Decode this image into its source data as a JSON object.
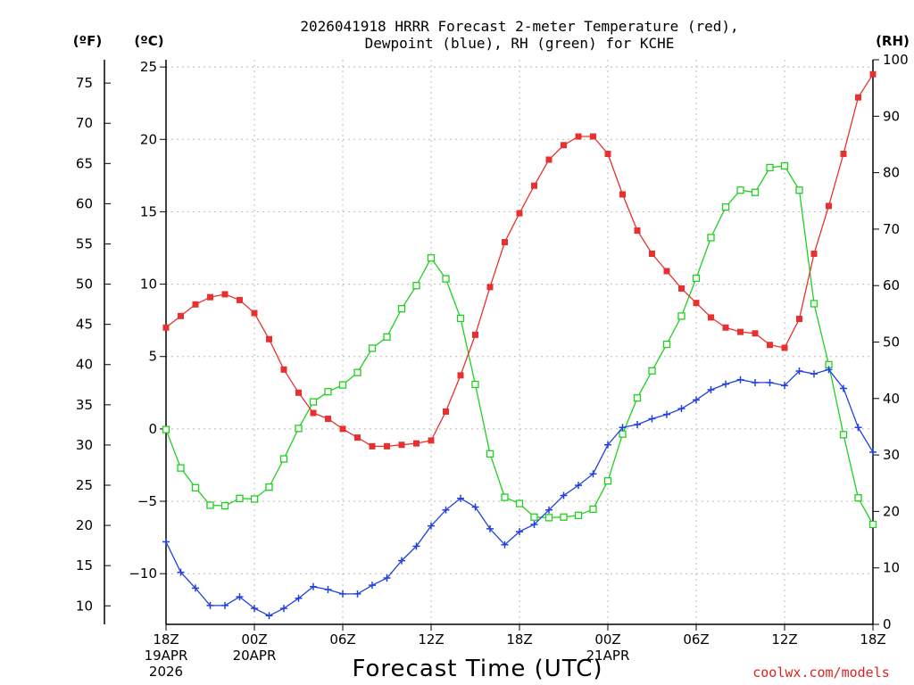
{
  "chart_data": {
    "type": "line",
    "title": [
      "2026041918 HRRR Forecast 2-meter Temperature (red),",
      "Dewpoint (blue), RH (green) for KCHE"
    ],
    "xlabel": "Forecast Time (UTC)",
    "credit": "coolwx.com/models",
    "units": {
      "fahrenheit": "(ºF)",
      "celsius": "(ºC)",
      "rh": "(RH)"
    },
    "x_range": [
      0,
      48
    ],
    "celsius_axis": {
      "range": [
        -13.5,
        25.5
      ],
      "ticks": [
        25,
        20,
        15,
        10,
        5,
        0,
        -5,
        -10
      ],
      "tick_labels": [
        "25",
        "20",
        "15",
        "10",
        "5",
        "0",
        "−5",
        "−10"
      ]
    },
    "fahrenheit_axis": {
      "ticks": [
        75,
        70,
        65,
        60,
        55,
        50,
        45,
        40,
        35,
        30,
        25,
        20,
        15,
        10
      ],
      "tick_labels": [
        "75",
        "70",
        "65",
        "60",
        "55",
        "50",
        "45",
        "40",
        "35",
        "30",
        "25",
        "20",
        "15",
        "10"
      ]
    },
    "rh_axis": {
      "range": [
        0,
        100
      ],
      "ticks": [
        100,
        90,
        80,
        70,
        60,
        50,
        40,
        30,
        20,
        10,
        0
      ],
      "tick_labels": [
        "100",
        "90",
        "80",
        "70",
        "60",
        "50",
        "40",
        "30",
        "20",
        "10",
        "0"
      ]
    },
    "x_ticks": [
      {
        "hour": 0,
        "lines": [
          "18Z",
          "19APR",
          "2026"
        ]
      },
      {
        "hour": 6,
        "lines": [
          "00Z",
          "20APR"
        ]
      },
      {
        "hour": 12,
        "lines": [
          "06Z"
        ]
      },
      {
        "hour": 18,
        "lines": [
          "12Z"
        ]
      },
      {
        "hour": 24,
        "lines": [
          "18Z"
        ]
      },
      {
        "hour": 30,
        "lines": [
          "00Z",
          "21APR"
        ]
      },
      {
        "hour": 36,
        "lines": [
          "06Z"
        ]
      },
      {
        "hour": 42,
        "lines": [
          "12Z"
        ]
      },
      {
        "hour": 48,
        "lines": [
          "18Z"
        ]
      }
    ],
    "series": [
      {
        "name": "2-meter Temperature",
        "axis": "celsius",
        "color": "#e83030",
        "marker": "filled-square",
        "values": [
          7.0,
          7.8,
          8.6,
          9.1,
          9.3,
          8.9,
          8.0,
          6.2,
          4.1,
          2.5,
          1.1,
          0.7,
          0.0,
          -0.6,
          -1.2,
          -1.2,
          -1.1,
          -1.0,
          -0.8,
          1.2,
          3.7,
          6.5,
          9.8,
          12.9,
          14.9,
          16.8,
          18.6,
          19.6,
          20.2,
          20.2,
          19.0,
          16.2,
          13.7,
          12.1,
          10.9,
          9.7,
          8.7,
          7.7,
          7.0,
          6.7,
          6.6,
          5.8,
          5.6,
          7.6,
          12.1,
          15.4,
          19.0,
          22.9,
          24.5
        ]
      },
      {
        "name": "Dewpoint",
        "axis": "celsius",
        "color": "#2040e0",
        "marker": "plus",
        "values": [
          -7.8,
          -9.9,
          -11.0,
          -12.2,
          -12.2,
          -11.6,
          -12.4,
          -12.9,
          -12.4,
          -11.7,
          -10.9,
          -11.1,
          -11.4,
          -11.4,
          -10.8,
          -10.3,
          -9.1,
          -8.1,
          -6.7,
          -5.6,
          -4.8,
          -5.4,
          -6.9,
          -8.0,
          -7.1,
          -6.6,
          -5.6,
          -4.6,
          -3.9,
          -3.1,
          -1.1,
          0.1,
          0.3,
          0.7,
          1.0,
          1.4,
          2.0,
          2.7,
          3.1,
          3.4,
          3.2,
          3.2,
          3.0,
          4.0,
          3.8,
          4.1,
          2.8,
          0.1,
          -1.6
        ]
      },
      {
        "name": "RH",
        "axis": "rh",
        "color": "#20d020",
        "marker": "open-square",
        "values": [
          34.5,
          27.7,
          24.2,
          21.1,
          21.0,
          22.3,
          22.2,
          24.3,
          29.3,
          34.7,
          39.4,
          41.2,
          42.4,
          44.6,
          48.9,
          50.9,
          55.9,
          60.0,
          64.9,
          61.2,
          54.2,
          42.5,
          30.2,
          22.5,
          21.4,
          19.0,
          18.9,
          19.0,
          19.3,
          20.4,
          25.4,
          33.7,
          40.1,
          44.9,
          49.6,
          54.6,
          61.3,
          68.5,
          73.9,
          76.9,
          76.5,
          80.9,
          81.2,
          76.9,
          56.8,
          46.0,
          33.6,
          22.4,
          17.7
        ]
      }
    ]
  }
}
